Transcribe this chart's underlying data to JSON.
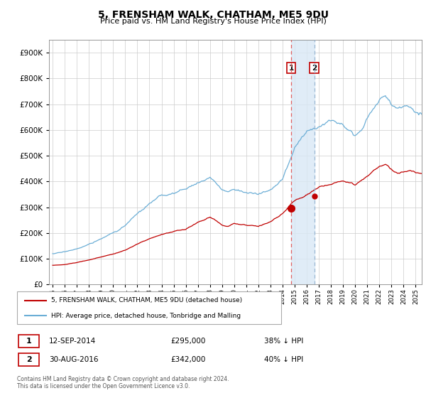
{
  "title": "5, FRENSHAM WALK, CHATHAM, ME5 9DU",
  "subtitle": "Price paid vs. HM Land Registry's House Price Index (HPI)",
  "hpi_color": "#6baed6",
  "price_color": "#c00000",
  "sale1_year": 2014,
  "sale1_month": 9,
  "sale1_price": 295000,
  "sale1_label": "1",
  "sale2_year": 2016,
  "sale2_month": 8,
  "sale2_price": 342000,
  "sale2_label": "2",
  "legend1": "5, FRENSHAM WALK, CHATHAM, ME5 9DU (detached house)",
  "legend2": "HPI: Average price, detached house, Tonbridge and Malling",
  "footnote1": "Contains HM Land Registry data © Crown copyright and database right 2024.",
  "footnote2": "This data is licensed under the Open Government Licence v3.0.",
  "row1_date": "12-SEP-2014",
  "row1_price": "£295,000",
  "row1_hpi": "38% ↓ HPI",
  "row2_date": "30-AUG-2016",
  "row2_price": "£342,000",
  "row2_hpi": "40% ↓ HPI",
  "ylim_max": 950000,
  "ylim_min": 0,
  "highlight_color": "#d9e8f5",
  "vline1_color": "#e06060",
  "vline2_color": "#9ab8d4",
  "box_color": "#c00000"
}
